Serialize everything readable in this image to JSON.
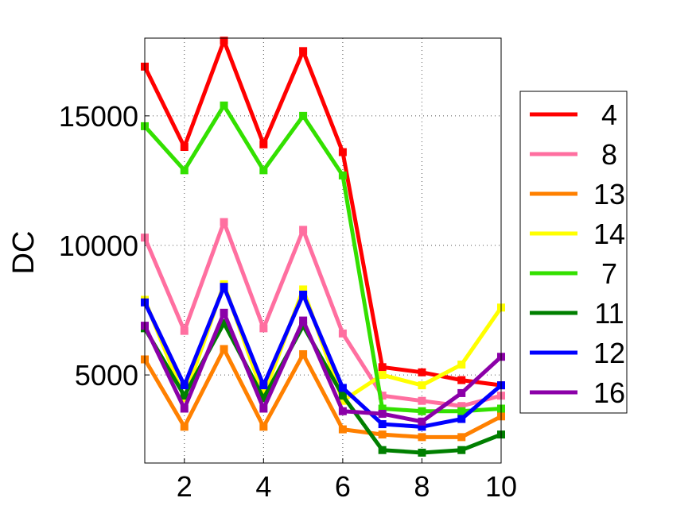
{
  "chart_data": {
    "type": "line",
    "title": "",
    "xlabel": "",
    "ylabel": "DC",
    "xlim": [
      1,
      10
    ],
    "ylim": [
      1600,
      18000
    ],
    "x": [
      1,
      2,
      3,
      4,
      5,
      6,
      7,
      8,
      9,
      10
    ],
    "x_ticks": [
      2,
      4,
      6,
      8,
      10
    ],
    "y_ticks": [
      5000,
      10000,
      15000
    ],
    "grid": true,
    "legend_position": "right",
    "series": [
      {
        "name": "4",
        "color": "#ff0000",
        "values": [
          16900,
          13800,
          17900,
          13900,
          17500,
          13600,
          5300,
          5100,
          4800,
          4600
        ]
      },
      {
        "name": "8",
        "color": "#ff6fa0",
        "values": [
          10300,
          6700,
          10900,
          6800,
          10600,
          6600,
          4200,
          4000,
          3800,
          4200
        ]
      },
      {
        "name": "13",
        "color": "#ff8000",
        "values": [
          5600,
          3000,
          6000,
          3000,
          5800,
          2900,
          2700,
          2600,
          2600,
          3400
        ]
      },
      {
        "name": "14",
        "color": "#ffff00",
        "values": [
          7900,
          4100,
          8500,
          4200,
          8300,
          4000,
          5000,
          4600,
          5400,
          7600
        ]
      },
      {
        "name": "7",
        "color": "#33e000",
        "values": [
          14600,
          12900,
          15400,
          12900,
          15000,
          12700,
          3700,
          3600,
          3600,
          3700
        ]
      },
      {
        "name": "11",
        "color": "#007f00",
        "values": [
          6800,
          4200,
          7000,
          4100,
          6900,
          4200,
          2100,
          2000,
          2100,
          2700
        ]
      },
      {
        "name": "12",
        "color": "#0000ff",
        "values": [
          7800,
          4600,
          8400,
          4600,
          8100,
          4500,
          3100,
          3000,
          3300,
          4600
        ]
      },
      {
        "name": "16",
        "color": "#8b00a8",
        "values": [
          6900,
          3700,
          7400,
          3700,
          7100,
          3600,
          3500,
          3200,
          4300,
          5700
        ]
      }
    ]
  }
}
